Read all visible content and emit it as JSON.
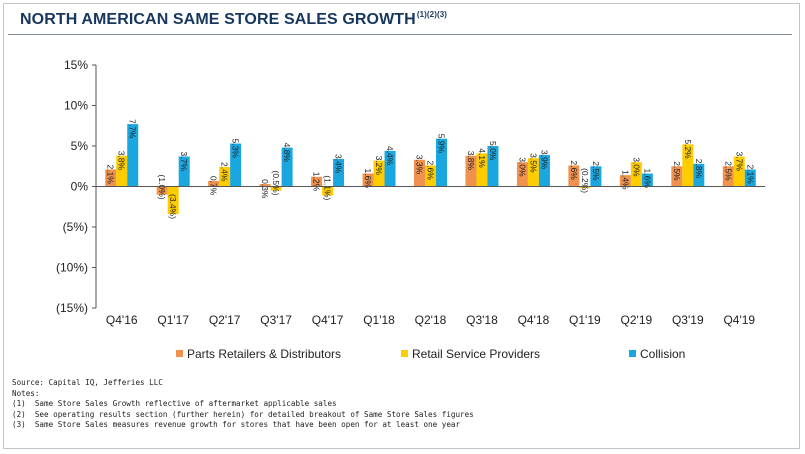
{
  "title": {
    "text": "NORTH AMERICAN SAME STORE SALES GROWTH",
    "superscript": "(1)(2)(3)"
  },
  "colors": {
    "title": "#17375e",
    "series": [
      "#f0924d",
      "#ffcc00",
      "#1aa7e0"
    ]
  },
  "chart_data": {
    "type": "bar",
    "categories": [
      "Q4'16",
      "Q1'17",
      "Q2'17",
      "Q3'17",
      "Q4'17",
      "Q1'18",
      "Q2'18",
      "Q3'18",
      "Q4'18",
      "Q1'19",
      "Q2'19",
      "Q3'19",
      "Q4'19"
    ],
    "series": [
      {
        "name": "Parts Retailers & Distributors",
        "values": [
          2.1,
          -1.0,
          0.7,
          0.3,
          1.2,
          1.6,
          3.3,
          3.8,
          3.0,
          2.6,
          1.4,
          2.5,
          2.5
        ],
        "labels": [
          "2.1%",
          "(1.0%)",
          "0.7%",
          "0.3%",
          "1.2%",
          "1.6%",
          "3.3%",
          "3.8%",
          "3.0%",
          "2.6%",
          "1.4%",
          "2.5%",
          "2.5%"
        ]
      },
      {
        "name": "Retail Service Providers",
        "values": [
          3.8,
          -3.4,
          2.4,
          -0.5,
          -1.1,
          3.2,
          2.6,
          4.1,
          3.5,
          -0.2,
          3.0,
          5.2,
          3.7
        ],
        "labels": [
          "3.8%",
          "(3.4%)",
          "2.4%",
          "(0.5%)",
          "(1.1%)",
          "3.2%",
          "2.6%",
          "4.1%",
          "3.5%",
          "(0.2%)",
          "3.0%",
          "5.2%",
          "3.7%"
        ]
      },
      {
        "name": "Collision",
        "values": [
          7.7,
          3.7,
          5.3,
          4.8,
          3.4,
          4.4,
          5.9,
          5.0,
          3.9,
          2.5,
          1.6,
          2.8,
          2.1
        ],
        "labels": [
          "7.7%",
          "3.7%",
          "5.3%",
          "4.8%",
          "3.4%",
          "4.4%",
          "5.9%",
          "5.0%",
          "3.9%",
          "2.5%",
          "1.6%",
          "2.8%",
          "2.1%"
        ]
      }
    ],
    "y_ticks": [
      15,
      10,
      5,
      0,
      -5,
      -10,
      -15
    ],
    "y_tick_labels": [
      "15%",
      "10%",
      "5%",
      "0%",
      "(5%)",
      "(10%)",
      "(15%)"
    ],
    "ylim": [
      -15,
      15
    ],
    "grid": false,
    "legend_position": "bottom"
  },
  "notes": [
    "Source: Capital IQ, Jefferies LLC",
    "Notes:",
    "(1)  Same Store Sales Growth reflective of aftermarket applicable sales",
    "(2)  See operating results section (further herein) for detailed breakout of Same Store Sales figures",
    "(3)  Same Store Sales measures revenue growth for stores that have been open for at least one year"
  ]
}
